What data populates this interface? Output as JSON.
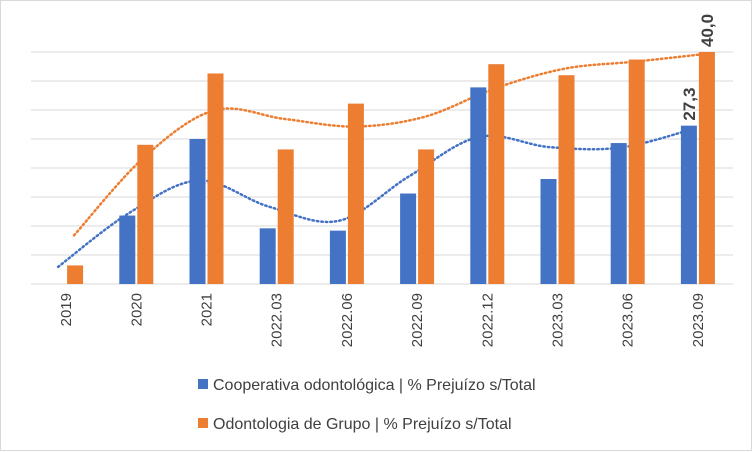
{
  "chart_data": {
    "type": "bar",
    "title": "",
    "xlabel": "",
    "ylabel": "",
    "ylim": [
      0,
      40
    ],
    "grid": true,
    "legend_position": "bottom",
    "categories": [
      "2019",
      "2020",
      "2021",
      "2022.03",
      "2022.06",
      "2022.09",
      "2022.12",
      "2023.03",
      "2023.06",
      "2023.09"
    ],
    "series": [
      {
        "name": "Cooperativa odontológica | % Prejuízo s/Total",
        "color": "#4472C4",
        "values": [
          0,
          11.8,
          25.0,
          9.6,
          9.2,
          15.6,
          33.9,
          18.1,
          24.3,
          27.3
        ],
        "trendline": "polynomial",
        "data_labels": {
          "9": "27,3"
        }
      },
      {
        "name": "Odontologia de Grupo | % Prejuízo s/Total",
        "color": "#ED7D31",
        "values": [
          3.2,
          24.0,
          36.3,
          23.2,
          31.1,
          23.2,
          37.9,
          36.0,
          38.7,
          40.0
        ],
        "trendline": "polynomial",
        "data_labels": {
          "9": "40,0"
        }
      }
    ]
  }
}
